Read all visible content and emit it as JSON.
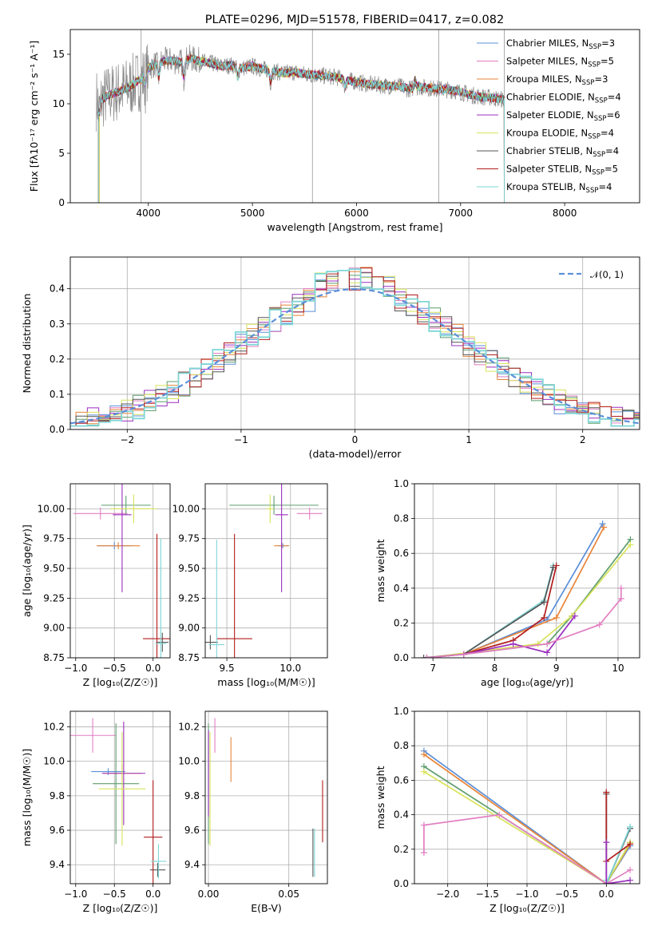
{
  "figure_title": "PLATE=0296, MJD=51578, FIBERID=0417, z=0.082",
  "colors": {
    "chabrier_miles": "#5b8fd9",
    "salpeter_miles": "#e27fc1",
    "kroupa_miles": "#e8853a",
    "chabrier_elodie": "#5f9e6f",
    "salpeter_elodie": "#9b2fbf",
    "kroupa_elodie": "#d8e35a",
    "chabrier_stelib": "#555555",
    "salpeter_stelib": "#b21e1e",
    "kroupa_stelib": "#7fd6d6",
    "data_spectrum": "#888888",
    "normal_curve": "#5b8fd9"
  },
  "legend_models": [
    {
      "key": "chabrier_miles",
      "pre": "Chabrier MILES, N",
      "sub": "SSP",
      "post": "=3"
    },
    {
      "key": "salpeter_miles",
      "pre": "Salpeter MILES, N",
      "sub": "SSP",
      "post": "=5"
    },
    {
      "key": "kroupa_miles",
      "pre": "Kroupa MILES, N",
      "sub": "SSP",
      "post": "=3"
    },
    {
      "key": "chabrier_elodie",
      "pre": "Chabrier ELODIE, N",
      "sub": "SSP",
      "post": "=4"
    },
    {
      "key": "salpeter_elodie",
      "pre": "Salpeter ELODIE, N",
      "sub": "SSP",
      "post": "=6"
    },
    {
      "key": "kroupa_elodie",
      "pre": "Kroupa ELODIE, N",
      "sub": "SSP",
      "post": "=4"
    },
    {
      "key": "chabrier_stelib",
      "pre": "Chabrier STELIB, N",
      "sub": "SSP",
      "post": "=4"
    },
    {
      "key": "salpeter_stelib",
      "pre": "Salpeter STELIB, N",
      "sub": "SSP",
      "post": "=5"
    },
    {
      "key": "kroupa_stelib",
      "pre": "Kroupa STELIB, N",
      "sub": "SSP",
      "post": "=4"
    }
  ],
  "chart_data": [
    {
      "id": "spectrum",
      "type": "line",
      "xlabel": "wavelength [Angstrom, rest frame]",
      "ylabel": "Flux [fλ10⁻¹⁷ erg cm⁻² s⁻¹ A⁻¹]",
      "xlim": [
        3250,
        8720
      ],
      "ylim": [
        0,
        17.5
      ],
      "xticks": [
        4000,
        5000,
        6000,
        7000,
        8000
      ],
      "yticks": [
        0,
        5,
        10,
        15
      ],
      "grid": false,
      "legend_placement": "upper right",
      "continuum": [
        [
          3520,
          10.2
        ],
        [
          3600,
          10.8
        ],
        [
          3700,
          11.2
        ],
        [
          3800,
          11.6
        ],
        [
          3900,
          12.3
        ],
        [
          3950,
          12.8
        ],
        [
          4000,
          13.6
        ],
        [
          4100,
          14.2
        ],
        [
          4200,
          14.4
        ],
        [
          4300,
          14.2
        ],
        [
          4400,
          14.6
        ],
        [
          4500,
          14.3
        ],
        [
          4600,
          14.1
        ],
        [
          4700,
          13.8
        ],
        [
          4800,
          13.9
        ],
        [
          4900,
          13.6
        ],
        [
          5000,
          13.8
        ],
        [
          5100,
          13.5
        ],
        [
          5200,
          13.3
        ],
        [
          5300,
          13.1
        ],
        [
          5400,
          13.2
        ],
        [
          5500,
          13.0
        ],
        [
          5600,
          12.9
        ],
        [
          5700,
          12.8
        ],
        [
          5800,
          12.7
        ],
        [
          5900,
          12.4
        ],
        [
          6000,
          12.2
        ],
        [
          6100,
          12.0
        ],
        [
          6200,
          11.9
        ],
        [
          6300,
          11.8
        ],
        [
          6400,
          11.8
        ],
        [
          6500,
          11.5
        ],
        [
          6600,
          11.7
        ],
        [
          6700,
          11.6
        ],
        [
          6800,
          11.5
        ],
        [
          6900,
          11.4
        ],
        [
          7000,
          11.2
        ],
        [
          7100,
          10.9
        ],
        [
          7200,
          10.7
        ],
        [
          7300,
          10.6
        ],
        [
          7420,
          10.4
        ]
      ],
      "absorption_dips": [
        [
          3530,
          1.2
        ],
        [
          3930,
          0.3
        ],
        [
          3970,
          1.0
        ],
        [
          4100,
          1.5
        ],
        [
          4340,
          1.8
        ],
        [
          4860,
          1.0
        ],
        [
          5175,
          1.2
        ],
        [
          5890,
          0.8
        ],
        [
          6563,
          -0.8
        ]
      ],
      "masked_spikes": [
        3930,
        5577,
        6790,
        7420
      ]
    },
    {
      "id": "residuals",
      "type": "histogram",
      "xlabel": "(data-model)/error",
      "ylabel": "Normed distribution",
      "xlim": [
        -2.5,
        2.5
      ],
      "ylim": [
        0,
        0.49
      ],
      "xticks": [
        -2,
        -1,
        0,
        1,
        2
      ],
      "yticks": [
        0.0,
        0.1,
        0.2,
        0.3,
        0.4
      ],
      "grid": true,
      "legend_placement": "upper right",
      "legend": [
        {
          "label": "𝒩(0, 1)",
          "key": "normal_curve",
          "style": "dashed"
        }
      ],
      "bin_width": 0.1,
      "normal_mu": 0,
      "normal_sigma": 1
    },
    {
      "id": "age_vs_Z",
      "type": "scatter",
      "xlabel": "Z [log₁₀(Z/Z☉)]",
      "ylabel": "age  [log₁₀(age/yr)]",
      "xlim": [
        -1.07,
        0.22
      ],
      "ylim": [
        8.75,
        10.21
      ],
      "xticks": [
        -1.0,
        -0.5,
        0.0
      ],
      "yticks": [
        8.75,
        9.0,
        9.25,
        9.5,
        9.75,
        10.0
      ],
      "grid": true,
      "points": [
        {
          "key": "chabrier_miles",
          "x": -0.5,
          "y": 9.69,
          "xerr": 0.22,
          "yerr": 0.03
        },
        {
          "key": "salpeter_miles",
          "x": -0.68,
          "y": 9.96,
          "xerr": 0.35,
          "yerr": 0.05
        },
        {
          "key": "kroupa_miles",
          "x": -0.45,
          "y": 9.69,
          "xerr": 0.28,
          "yerr": 0.03
        },
        {
          "key": "chabrier_elodie",
          "x": -0.35,
          "y": 10.03,
          "xerr": 0.32,
          "yerr": 0.08
        },
        {
          "key": "salpeter_elodie",
          "x": -0.4,
          "y": 9.95,
          "xerr": 0.12,
          "yerr": 0.65
        },
        {
          "key": "kroupa_elodie",
          "x": -0.25,
          "y": 10.0,
          "xerr": 0.3,
          "yerr": 0.12
        },
        {
          "key": "chabrier_stelib",
          "x": 0.12,
          "y": 8.88,
          "xerr": 0.08,
          "yerr": 0.08
        },
        {
          "key": "salpeter_stelib",
          "x": 0.05,
          "y": 8.91,
          "xerr": 0.18,
          "yerr": 0.88
        },
        {
          "key": "kroupa_stelib",
          "x": 0.1,
          "y": 8.87,
          "xerr": 0.07,
          "yerr": 0.88
        }
      ]
    },
    {
      "id": "age_vs_mass",
      "type": "scatter",
      "xlabel": "mass [log₁₀(M/M☉)]",
      "ylabel": "",
      "xlim": [
        9.33,
        10.29
      ],
      "ylim": [
        8.75,
        10.21
      ],
      "xticks": [
        9.5,
        10.0
      ],
      "yticks": [
        8.75,
        9.0,
        9.25,
        9.5,
        9.75,
        10.0
      ],
      "grid": true,
      "points": [
        {
          "key": "chabrier_miles",
          "x": 9.94,
          "y": 9.69,
          "xerr": 0.04,
          "yerr": 0.02
        },
        {
          "key": "salpeter_miles",
          "x": 10.15,
          "y": 9.96,
          "xerr": 0.1,
          "yerr": 0.05
        },
        {
          "key": "kroupa_miles",
          "x": 9.93,
          "y": 9.69,
          "xerr": 0.06,
          "yerr": 0.03
        },
        {
          "key": "chabrier_elodie",
          "x": 9.87,
          "y": 10.03,
          "xerr": 0.35,
          "yerr": 0.08
        },
        {
          "key": "salpeter_elodie",
          "x": 9.93,
          "y": 9.95,
          "xerr": 0.05,
          "yerr": 0.65
        },
        {
          "key": "kroupa_elodie",
          "x": 9.84,
          "y": 10.0,
          "xerr": 0.03,
          "yerr": 0.12
        },
        {
          "key": "chabrier_stelib",
          "x": 9.37,
          "y": 8.88,
          "xerr": 0.06,
          "yerr": 0.06
        },
        {
          "key": "salpeter_stelib",
          "x": 9.56,
          "y": 8.91,
          "xerr": 0.14,
          "yerr": 0.88
        },
        {
          "key": "kroupa_stelib",
          "x": 9.42,
          "y": 8.86,
          "xerr": 0.06,
          "yerr": 0.88
        }
      ]
    },
    {
      "id": "weight_vs_age",
      "type": "line",
      "xlabel": "age  [log₁₀(age/yr)]",
      "ylabel": "mass weight",
      "xlim": [
        6.7,
        10.35
      ],
      "ylim": [
        0,
        1.0
      ],
      "xticks": [
        7,
        8,
        9,
        10
      ],
      "yticks": [
        0.0,
        0.2,
        0.4,
        0.6,
        0.8,
        1.0
      ],
      "grid": true,
      "series": [
        {
          "key": "chabrier_miles",
          "x": [
            7.5,
            8.85,
            9.75
          ],
          "y": [
            0.02,
            0.22,
            0.77
          ]
        },
        {
          "key": "kroupa_miles",
          "x": [
            7.5,
            9.0,
            9.77
          ],
          "y": [
            0.02,
            0.23,
            0.75
          ]
        },
        {
          "key": "chabrier_elodie",
          "x": [
            7.5,
            8.85,
            9.25,
            10.2
          ],
          "y": [
            0.02,
            0.08,
            0.24,
            0.68
          ]
        },
        {
          "key": "kroupa_elodie",
          "x": [
            6.9,
            8.7,
            9.25,
            10.2
          ],
          "y": [
            0.0,
            0.08,
            0.24,
            0.65
          ]
        },
        {
          "key": "kroupa_stelib",
          "x": [
            6.9,
            7.5,
            8.8,
            8.95
          ],
          "y": [
            0.0,
            0.02,
            0.33,
            0.53
          ]
        },
        {
          "key": "chabrier_stelib",
          "x": [
            6.85,
            7.5,
            8.8,
            8.95
          ],
          "y": [
            0.0,
            0.02,
            0.32,
            0.52
          ]
        },
        {
          "key": "salpeter_stelib",
          "x": [
            7.5,
            8.3,
            8.8,
            9.0
          ],
          "y": [
            0.02,
            0.1,
            0.23,
            0.53
          ]
        },
        {
          "key": "salpeter_elodie",
          "x": [
            6.9,
            7.5,
            8.3,
            8.85,
            9.3
          ],
          "y": [
            0.0,
            0.02,
            0.08,
            0.03,
            0.24
          ]
        },
        {
          "key": "salpeter_miles",
          "x": [
            6.9,
            7.5,
            8.85,
            9.7,
            10.05,
            10.05
          ],
          "y": [
            0.0,
            0.02,
            0.08,
            0.19,
            0.34,
            0.4
          ]
        }
      ]
    },
    {
      "id": "mass_vs_Z",
      "type": "scatter",
      "xlabel": "Z [log₁₀(Z/Z☉)]",
      "ylabel": "mass [log₁₀(M/M☉)]",
      "xlim": [
        -1.07,
        0.22
      ],
      "ylim": [
        9.29,
        10.29
      ],
      "xticks": [
        -1.0,
        -0.5,
        0.0
      ],
      "yticks": [
        9.4,
        9.6,
        9.8,
        10.0,
        10.2
      ],
      "grid": true,
      "points": [
        {
          "key": "chabrier_miles",
          "x": -0.58,
          "y": 9.94,
          "xerr": 0.22,
          "yerr": 0.02
        },
        {
          "key": "salpeter_miles",
          "x": -0.78,
          "y": 10.15,
          "xerr": 0.3,
          "yerr": 0.1
        },
        {
          "key": "kroupa_miles",
          "x": -0.4,
          "y": 9.93,
          "xerr": 0.25,
          "yerr": 0.05
        },
        {
          "key": "chabrier_elodie",
          "x": -0.48,
          "y": 9.87,
          "xerr": 0.3,
          "yerr": 0.35
        },
        {
          "key": "salpeter_elodie",
          "x": -0.38,
          "y": 9.93,
          "xerr": 0.28,
          "yerr": 0.3
        },
        {
          "key": "kroupa_elodie",
          "x": -0.4,
          "y": 9.84,
          "xerr": 0.3,
          "yerr": 0.33
        },
        {
          "key": "chabrier_stelib",
          "x": 0.06,
          "y": 9.37,
          "xerr": 0.1,
          "yerr": 0.04
        },
        {
          "key": "salpeter_stelib",
          "x": 0.0,
          "y": 9.56,
          "xerr": 0.12,
          "yerr": 0.33
        },
        {
          "key": "kroupa_stelib",
          "x": 0.07,
          "y": 9.42,
          "xerr": 0.1,
          "yerr": 0.1
        }
      ]
    },
    {
      "id": "mass_vs_EBV",
      "type": "scatter",
      "xlabel": "E(B-V)",
      "ylabel": "",
      "xlim": [
        -0.002,
        0.074
      ],
      "ylim": [
        9.29,
        10.29
      ],
      "xticks": [
        0.0,
        0.05
      ],
      "yticks": [
        9.4,
        9.6,
        9.8,
        10.0,
        10.2
      ],
      "grid": true,
      "points": [
        {
          "key": "chabrier_miles",
          "x": 0.0,
          "y": 9.94,
          "xerr": 0,
          "yerr": 0.25
        },
        {
          "key": "salpeter_miles",
          "x": 0.004,
          "y": 10.15,
          "xerr": 0,
          "yerr": 0.1
        },
        {
          "key": "kroupa_miles",
          "x": 0.014,
          "y": 10.01,
          "xerr": 0,
          "yerr": 0.13
        },
        {
          "key": "chabrier_elodie",
          "x": 0.0,
          "y": 9.87,
          "xerr": 0,
          "yerr": 0.35
        },
        {
          "key": "salpeter_elodie",
          "x": 0.0,
          "y": 9.93,
          "xerr": 0,
          "yerr": 0.25
        },
        {
          "key": "kroupa_elodie",
          "x": 0.001,
          "y": 9.84,
          "xerr": 0,
          "yerr": 0.33
        },
        {
          "key": "chabrier_stelib",
          "x": 0.065,
          "y": 9.47,
          "xerr": 0,
          "yerr": 0.14
        },
        {
          "key": "salpeter_stelib",
          "x": 0.071,
          "y": 9.71,
          "xerr": 0,
          "yerr": 0.18
        },
        {
          "key": "kroupa_stelib",
          "x": 0.066,
          "y": 9.47,
          "xerr": 0,
          "yerr": 0.14
        }
      ]
    },
    {
      "id": "weight_vs_Z",
      "type": "line",
      "xlabel": "Z [log₁₀(Z/Z☉)]",
      "ylabel": "mass weight",
      "xlim": [
        -2.42,
        0.42
      ],
      "ylim": [
        0,
        1.0
      ],
      "xticks": [
        -2.0,
        -1.5,
        -1.0,
        -0.5,
        0.0
      ],
      "yticks": [
        0.0,
        0.2,
        0.4,
        0.6,
        0.8,
        1.0
      ],
      "grid": true,
      "series": [
        {
          "key": "chabrier_miles",
          "x": [
            -2.3,
            0.0,
            0.3
          ],
          "y": [
            0.77,
            0.0,
            0.22
          ]
        },
        {
          "key": "kroupa_miles",
          "x": [
            -2.3,
            0.0,
            0.3
          ],
          "y": [
            0.75,
            0.0,
            0.23
          ]
        },
        {
          "key": "chabrier_elodie",
          "x": [
            -2.3,
            0.0,
            0.3
          ],
          "y": [
            0.68,
            0.0,
            0.24
          ]
        },
        {
          "key": "kroupa_elodie",
          "x": [
            -2.3,
            0.0,
            0.3
          ],
          "y": [
            0.65,
            0.0,
            0.24
          ]
        },
        {
          "key": "salpeter_miles",
          "x": [
            -2.3,
            -2.3,
            -1.35,
            0.0,
            0.3
          ],
          "y": [
            0.18,
            0.34,
            0.4,
            0.0,
            0.08
          ]
        },
        {
          "key": "chabrier_stelib",
          "x": [
            0.0,
            0.0,
            0.3
          ],
          "y": [
            0.52,
            0.0,
            0.32
          ]
        },
        {
          "key": "kroupa_stelib",
          "x": [
            0.0,
            0.0,
            0.0,
            0.3
          ],
          "y": [
            0.53,
            0.02,
            0.0,
            0.33
          ]
        },
        {
          "key": "salpeter_stelib",
          "x": [
            0.0,
            0.0,
            0.3
          ],
          "y": [
            0.53,
            0.13,
            0.23
          ]
        },
        {
          "key": "salpeter_elodie",
          "x": [
            0.0,
            0.0,
            0.3
          ],
          "y": [
            0.24,
            0.0,
            0.02
          ]
        }
      ]
    }
  ]
}
